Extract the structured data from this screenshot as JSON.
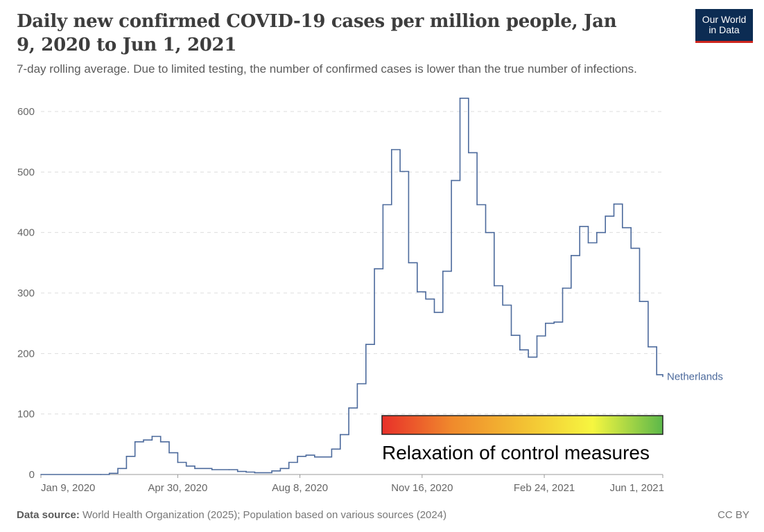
{
  "header": {
    "title": "Daily new confirmed COVID-19 cases per million people, Jan 9, 2020 to Jun 1, 2021",
    "subtitle": "7-day rolling average. Due to limited testing, the number of confirmed cases is lower than the true number of infections.",
    "logo_line1": "Our World",
    "logo_line2": "in Data"
  },
  "footer": {
    "source_label": "Data source:",
    "source_text": " World Health Organization (2025); Population based on various sources (2024)",
    "license": "CC BY"
  },
  "annotation": {
    "text": "Relaxation of control measures",
    "gradient_colors": [
      "#e8302a",
      "#f08a2c",
      "#f3c033",
      "#f6f640",
      "#5cb84a"
    ]
  },
  "colors": {
    "series": "#4c6a9c",
    "grid": "#dddddd"
  },
  "chart_data": {
    "type": "line",
    "title": "Daily new confirmed COVID-19 cases per million people, Jan 9, 2020 to Jun 1, 2021",
    "ylim": [
      0,
      600
    ],
    "yticks": [
      0,
      100,
      200,
      300,
      400,
      500,
      600
    ],
    "xticks": [
      {
        "date": "2020-01-09",
        "label": "Jan 9, 2020"
      },
      {
        "date": "2020-04-30",
        "label": "Apr 30, 2020"
      },
      {
        "date": "2020-08-08",
        "label": "Aug 8, 2020"
      },
      {
        "date": "2020-11-16",
        "label": "Nov 16, 2020"
      },
      {
        "date": "2021-02-24",
        "label": "Feb 24, 2021"
      },
      {
        "date": "2021-06-01",
        "label": "Jun 1, 2021"
      }
    ],
    "xlim": [
      "2020-01-09",
      "2021-06-01"
    ],
    "grid": true,
    "step": true,
    "series": [
      {
        "name": "Netherlands",
        "points": [
          [
            "2020-01-09",
            0
          ],
          [
            "2020-02-27",
            0
          ],
          [
            "2020-03-05",
            2
          ],
          [
            "2020-03-12",
            10
          ],
          [
            "2020-03-19",
            30
          ],
          [
            "2020-03-26",
            54
          ],
          [
            "2020-04-02",
            57
          ],
          [
            "2020-04-09",
            63
          ],
          [
            "2020-04-16",
            54
          ],
          [
            "2020-04-23",
            36
          ],
          [
            "2020-04-30",
            20
          ],
          [
            "2020-05-07",
            14
          ],
          [
            "2020-05-14",
            10
          ],
          [
            "2020-05-28",
            8
          ],
          [
            "2020-06-11",
            8
          ],
          [
            "2020-06-18",
            5
          ],
          [
            "2020-06-25",
            4
          ],
          [
            "2020-07-02",
            3
          ],
          [
            "2020-07-16",
            6
          ],
          [
            "2020-07-23",
            10
          ],
          [
            "2020-07-30",
            20
          ],
          [
            "2020-08-06",
            30
          ],
          [
            "2020-08-13",
            32
          ],
          [
            "2020-08-20",
            29
          ],
          [
            "2020-09-03",
            42
          ],
          [
            "2020-09-10",
            66
          ],
          [
            "2020-09-17",
            110
          ],
          [
            "2020-09-24",
            150
          ],
          [
            "2020-10-01",
            215
          ],
          [
            "2020-10-08",
            340
          ],
          [
            "2020-10-15",
            446
          ],
          [
            "2020-10-22",
            537
          ],
          [
            "2020-10-29",
            501
          ],
          [
            "2020-11-05",
            350
          ],
          [
            "2020-11-12",
            302
          ],
          [
            "2020-11-19",
            290
          ],
          [
            "2020-11-26",
            268
          ],
          [
            "2020-12-03",
            336
          ],
          [
            "2020-12-10",
            486
          ],
          [
            "2020-12-17",
            622
          ],
          [
            "2020-12-24",
            532
          ],
          [
            "2020-12-31",
            446
          ],
          [
            "2021-01-07",
            400
          ],
          [
            "2021-01-14",
            312
          ],
          [
            "2021-01-21",
            280
          ],
          [
            "2021-01-28",
            230
          ],
          [
            "2021-02-04",
            206
          ],
          [
            "2021-02-11",
            194
          ],
          [
            "2021-02-18",
            229
          ],
          [
            "2021-02-25",
            250
          ],
          [
            "2021-03-04",
            252
          ],
          [
            "2021-03-11",
            308
          ],
          [
            "2021-03-18",
            362
          ],
          [
            "2021-03-25",
            410
          ],
          [
            "2021-04-01",
            383
          ],
          [
            "2021-04-08",
            400
          ],
          [
            "2021-04-15",
            427
          ],
          [
            "2021-04-22",
            447
          ],
          [
            "2021-04-29",
            408
          ],
          [
            "2021-05-06",
            374
          ],
          [
            "2021-05-13",
            286
          ],
          [
            "2021-05-20",
            211
          ],
          [
            "2021-05-27",
            165
          ],
          [
            "2021-06-01",
            162
          ]
        ]
      }
    ]
  }
}
